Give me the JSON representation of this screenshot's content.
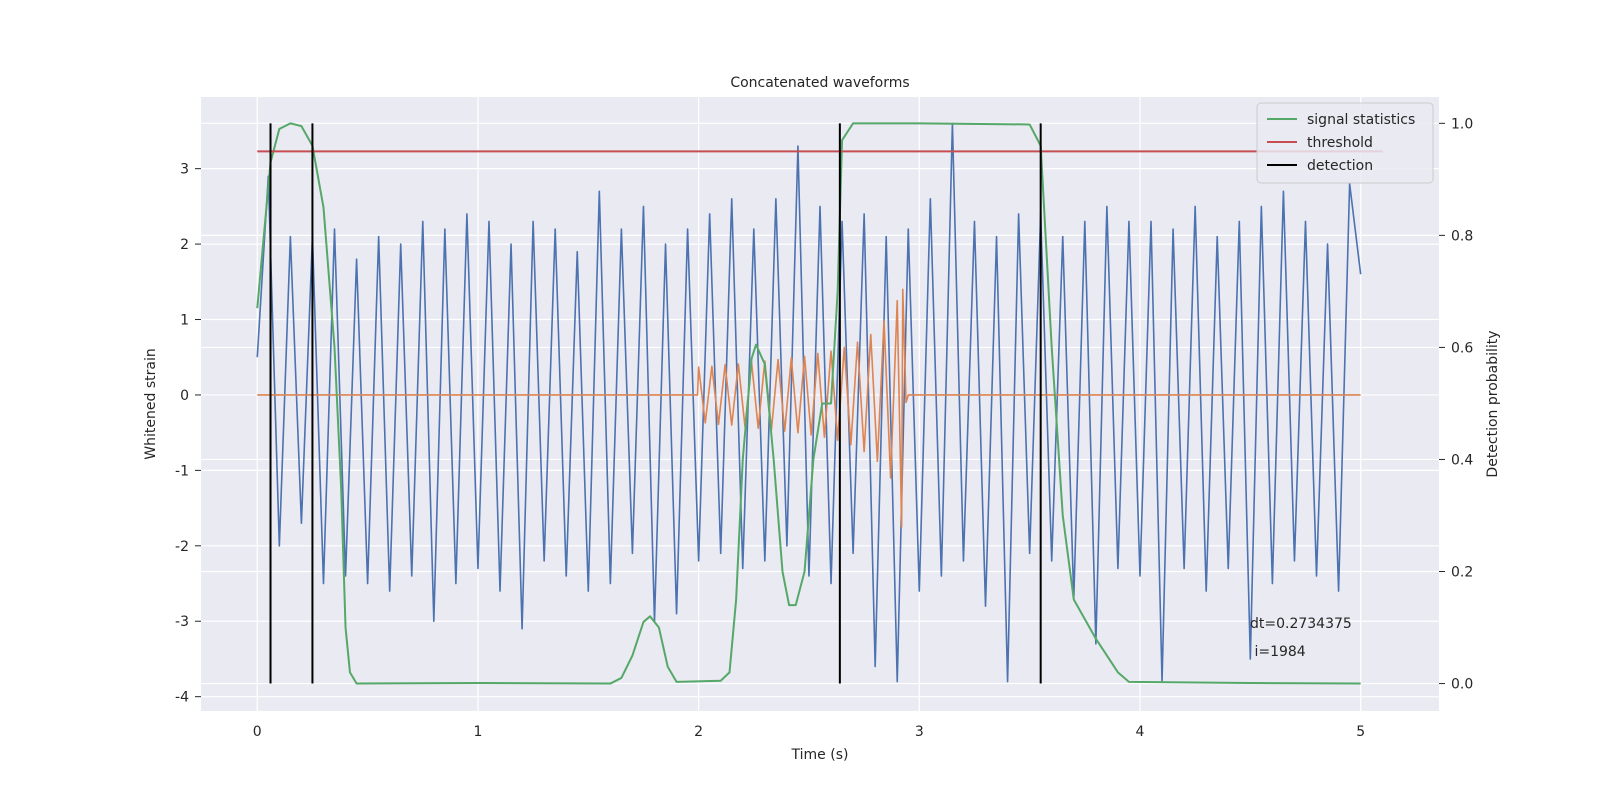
{
  "chart_data": {
    "type": "line",
    "title": "Concatenated waveforms",
    "xlabel": "Time (s)",
    "ylabel": "Whitened strain",
    "y2label": "Detection probability",
    "xlim": [
      -0.255,
      5.355
    ],
    "ylim": [
      -4.19,
      3.95
    ],
    "y2lim": [
      -0.049,
      1.047
    ],
    "xticks": [
      0,
      1,
      2,
      3,
      4,
      5
    ],
    "yticks": [
      -4,
      -3,
      -2,
      -1,
      0,
      1,
      2,
      3
    ],
    "y2ticks": [
      {
        "value": 0,
        "label": "0.0"
      },
      0.2,
      0.4,
      0.6,
      0.8,
      {
        "value": 1,
        "label": "1.0"
      }
    ],
    "grid": true,
    "legend": "upper right",
    "annotation": [
      "dt=0.2734375",
      " i=1984"
    ],
    "series": [
      {
        "color": "#4c72b0",
        "x": [
          0,
          0.05,
          0.1,
          0.15,
          0.2,
          0.25,
          0.3,
          0.35,
          0.4,
          0.45,
          0.5,
          0.55,
          0.6,
          0.65,
          0.7,
          0.75,
          0.8,
          0.85,
          0.9,
          0.95,
          1,
          1.05,
          1.1,
          1.15,
          1.2,
          1.25,
          1.3,
          1.35,
          1.4,
          1.45,
          1.5,
          1.55,
          1.6,
          1.65,
          1.7,
          1.75,
          1.8,
          1.85,
          1.9,
          1.95,
          2,
          2.05,
          2.1,
          2.15,
          2.2,
          2.25,
          2.3,
          2.35,
          2.4,
          2.45,
          2.5,
          2.55,
          2.6,
          2.65,
          2.7,
          2.75,
          2.8,
          2.85,
          2.9,
          2.95,
          3,
          3.05,
          3.1,
          3.15,
          3.2,
          3.25,
          3.3,
          3.35,
          3.4,
          3.45,
          3.5,
          3.55,
          3.6,
          3.65,
          3.7,
          3.75,
          3.8,
          3.85,
          3.9,
          3.95,
          4,
          4.05,
          4.1,
          4.15,
          4.2,
          4.25,
          4.3,
          4.35,
          4.4,
          4.45,
          4.5,
          4.55,
          4.6,
          4.65,
          4.7,
          4.75,
          4.8,
          4.85,
          4.9,
          4.95,
          5
        ],
        "values": [
          0.5,
          2.9,
          -2.0,
          2.1,
          -1.7,
          2.1,
          -2.5,
          2.2,
          -2.4,
          1.8,
          -2.5,
          2.1,
          -2.6,
          2.0,
          -2.4,
          2.3,
          -3.0,
          2.2,
          -2.5,
          2.4,
          -2.3,
          2.3,
          -2.6,
          2.0,
          -3.1,
          2.3,
          -2.2,
          2.2,
          -2.4,
          1.9,
          -2.6,
          2.7,
          -2.5,
          2.2,
          -2.1,
          2.5,
          -3.0,
          2.0,
          -2.9,
          2.2,
          -2.2,
          2.4,
          -2.1,
          2.6,
          -2.3,
          2.2,
          -2.2,
          2.6,
          -2.0,
          3.3,
          -2.4,
          2.5,
          -2.5,
          2.3,
          -2.1,
          2.4,
          -3.6,
          2.1,
          -3.8,
          2.2,
          -2.6,
          2.6,
          -2.4,
          3.6,
          -2.2,
          2.3,
          -2.8,
          2.1,
          -3.8,
          2.4,
          -2.1,
          2.4,
          -2.2,
          2.1,
          -2.7,
          2.3,
          -3.3,
          2.5,
          -2.3,
          2.3,
          -2.4,
          2.3,
          -3.8,
          2.2,
          -2.3,
          2.5,
          -2.6,
          2.1,
          -2.3,
          2.3,
          -3.5,
          2.5,
          -2.5,
          2.7,
          -2.2,
          2.3,
          -2.4,
          2.0,
          -2.6,
          2.8,
          1.6
        ]
      },
      {
        "color": "#dd8452",
        "x": [
          0,
          1.995,
          2.0,
          2.03,
          2.06,
          2.09,
          2.12,
          2.15,
          2.18,
          2.21,
          2.24,
          2.27,
          2.3,
          2.33,
          2.36,
          2.39,
          2.42,
          2.45,
          2.48,
          2.51,
          2.54,
          2.57,
          2.6,
          2.63,
          2.66,
          2.69,
          2.72,
          2.75,
          2.78,
          2.81,
          2.84,
          2.87,
          2.9,
          2.92,
          2.925,
          2.94,
          2.95,
          5
        ],
        "values": [
          0,
          0,
          0.37,
          -0.37,
          0.38,
          -0.39,
          0.4,
          -0.4,
          0.41,
          -0.42,
          0.43,
          -0.44,
          0.45,
          -0.46,
          0.47,
          -0.48,
          0.49,
          -0.5,
          0.51,
          -0.53,
          0.55,
          -0.56,
          0.58,
          -0.6,
          0.63,
          -0.66,
          0.7,
          -0.75,
          0.8,
          -0.88,
          0.98,
          -1.1,
          1.25,
          -1.75,
          1.4,
          -0.1,
          0,
          0
        ]
      },
      {
        "name": "signal statistics",
        "color": "#55a868",
        "axis": "y2",
        "x": [
          0,
          0.03,
          0.06,
          0.1,
          0.15,
          0.2,
          0.25,
          0.3,
          0.35,
          0.38,
          0.4,
          0.42,
          0.45,
          1.0,
          1.6,
          1.65,
          1.7,
          1.75,
          1.78,
          1.82,
          1.86,
          1.9,
          2.1,
          2.14,
          2.17,
          2.2,
          2.24,
          2.26,
          2.3,
          2.34,
          2.38,
          2.41,
          2.44,
          2.48,
          2.52,
          2.56,
          2.6,
          2.63,
          2.65,
          2.7,
          3.0,
          3.5,
          3.55,
          3.6,
          3.65,
          3.7,
          3.8,
          3.9,
          3.95,
          4.5,
          5.0
        ],
        "values": [
          0.67,
          0.8,
          0.93,
          0.99,
          1.0,
          0.995,
          0.96,
          0.85,
          0.6,
          0.35,
          0.1,
          0.02,
          0.0,
          0.001,
          0.0,
          0.01,
          0.05,
          0.11,
          0.12,
          0.1,
          0.03,
          0.003,
          0.005,
          0.02,
          0.15,
          0.4,
          0.58,
          0.605,
          0.57,
          0.4,
          0.2,
          0.14,
          0.14,
          0.2,
          0.4,
          0.5,
          0.5,
          0.7,
          0.97,
          1.0,
          1.0,
          0.998,
          0.96,
          0.6,
          0.3,
          0.15,
          0.08,
          0.02,
          0.003,
          0.001,
          0.0
        ]
      },
      {
        "name": "threshold",
        "color": "#c44e52",
        "axis": "y2",
        "x": [
          0,
          5.1
        ],
        "values": [
          0.95,
          0.95
        ]
      },
      {
        "name": "detection",
        "color": "#000000",
        "axis": "y2",
        "kind": "vlines",
        "x": [
          0.06,
          0.25,
          2.64,
          3.55
        ],
        "range": [
          0,
          1
        ]
      }
    ]
  }
}
